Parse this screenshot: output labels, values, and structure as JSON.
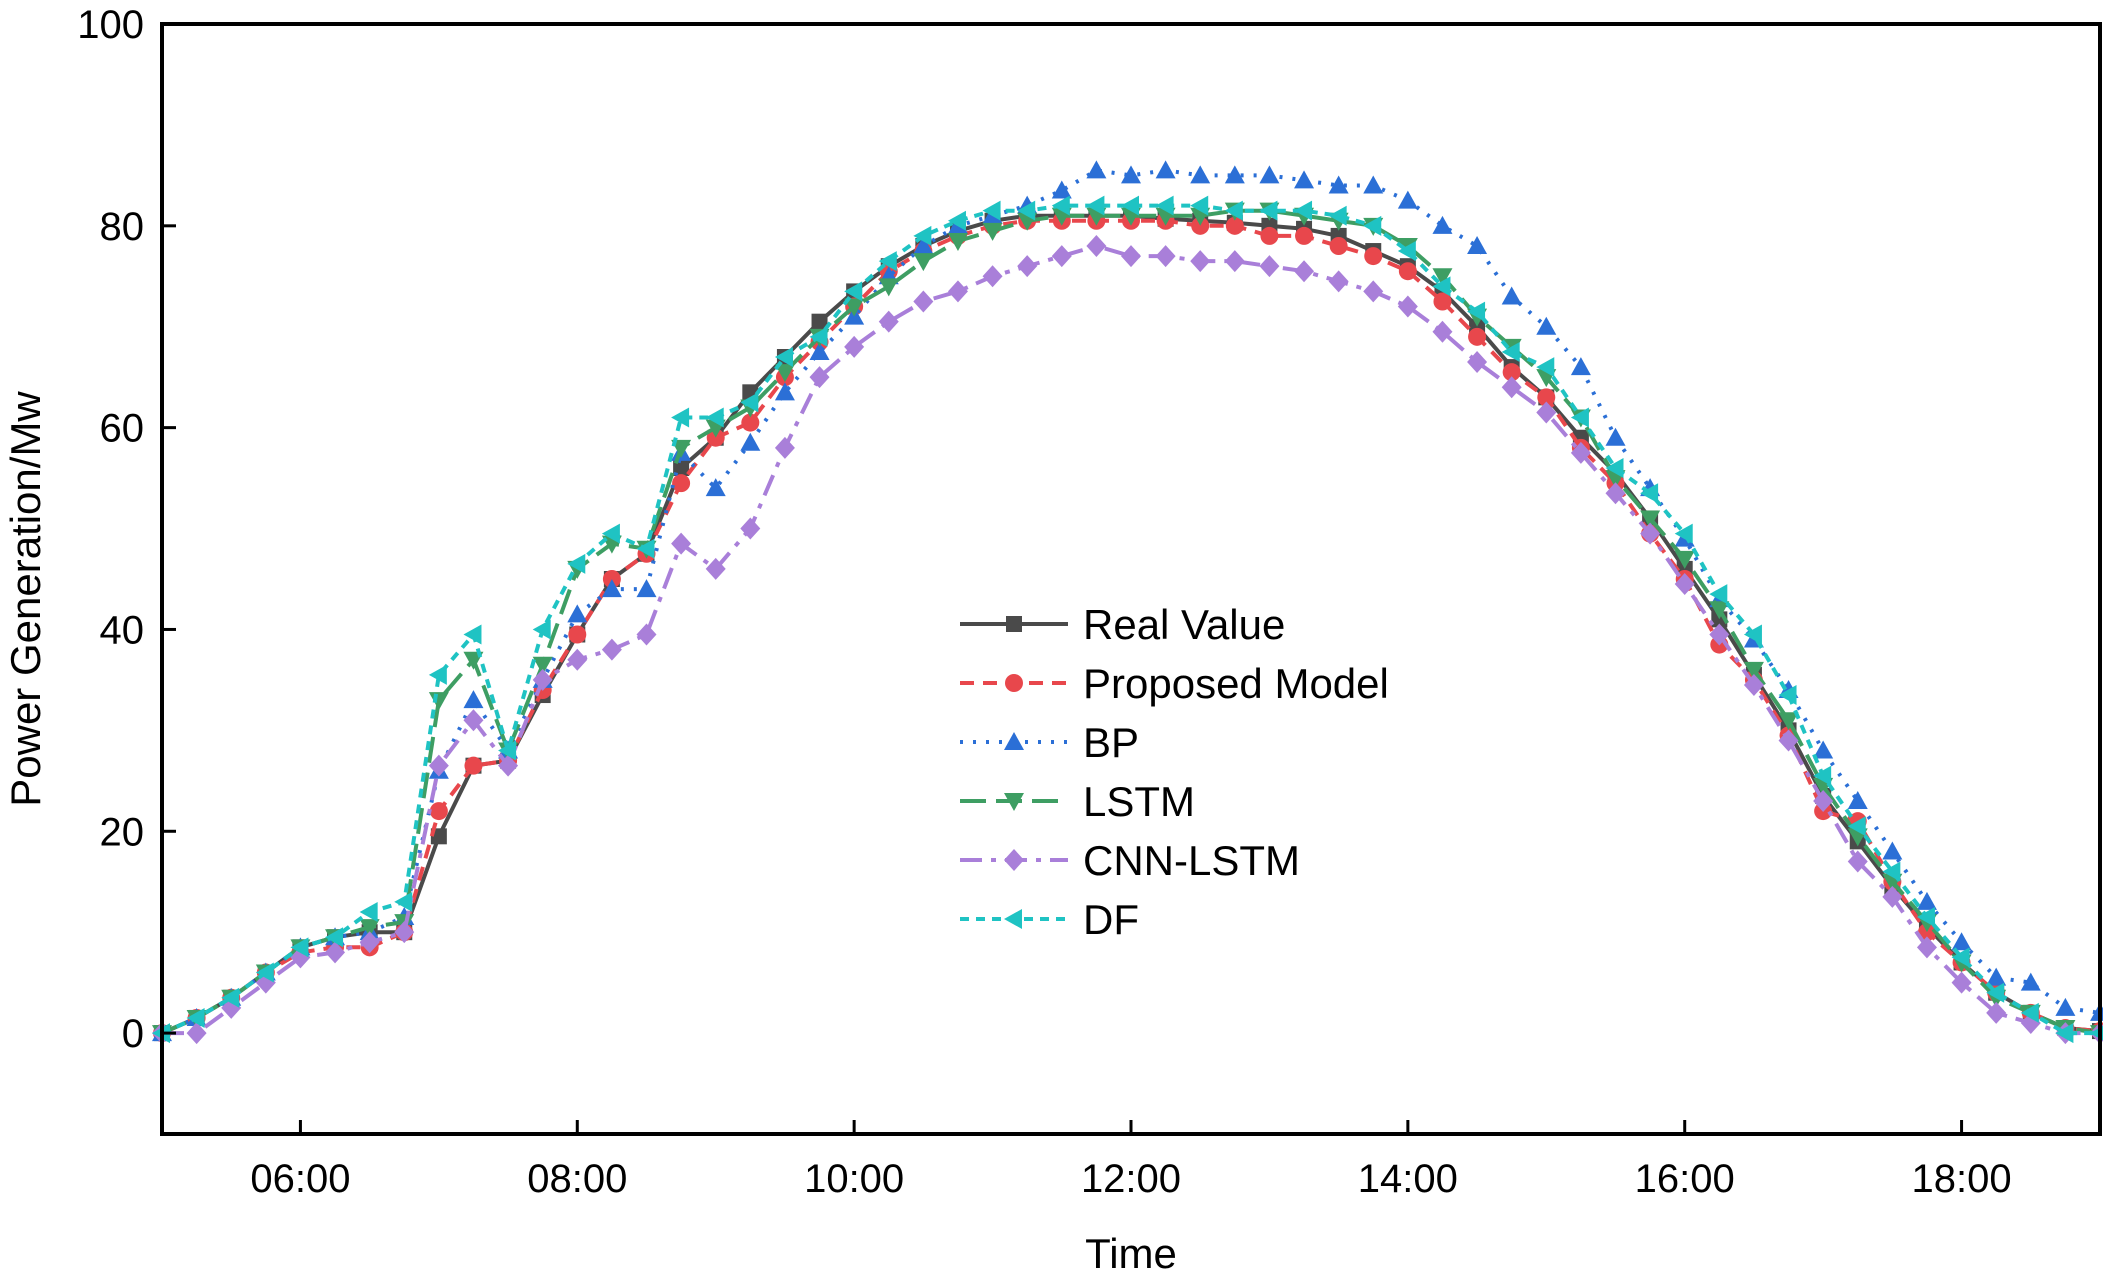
{
  "chart_data": {
    "type": "line",
    "xlabel": "Time",
    "ylabel": "Power Generation/Mw",
    "xlim": [
      5.0,
      19.0
    ],
    "ylim": [
      -10,
      100
    ],
    "xticks": [
      {
        "value": 6,
        "label": "06:00"
      },
      {
        "value": 8,
        "label": "08:00"
      },
      {
        "value": 10,
        "label": "10:00"
      },
      {
        "value": 12,
        "label": "12:00"
      },
      {
        "value": 14,
        "label": "14:00"
      },
      {
        "value": 16,
        "label": "16:00"
      },
      {
        "value": 18,
        "label": "18:00"
      }
    ],
    "yticks": [
      0,
      20,
      40,
      60,
      80,
      100
    ],
    "grid": false,
    "legend": "center",
    "x": [
      5.0,
      5.25,
      5.5,
      5.75,
      6.0,
      6.25,
      6.5,
      6.75,
      7.0,
      7.25,
      7.5,
      7.75,
      8.0,
      8.25,
      8.5,
      8.75,
      9.0,
      9.25,
      9.5,
      9.75,
      10.0,
      10.25,
      10.5,
      10.75,
      11.0,
      11.25,
      11.5,
      11.75,
      12.0,
      12.25,
      12.5,
      12.75,
      13.0,
      13.25,
      13.5,
      13.75,
      14.0,
      14.25,
      14.5,
      14.75,
      15.0,
      15.25,
      15.5,
      15.75,
      16.0,
      16.25,
      16.5,
      16.75,
      17.0,
      17.25,
      17.5,
      17.75,
      18.0,
      18.25,
      18.5,
      18.75,
      19.0
    ],
    "series": [
      {
        "name": "Real Value",
        "color": "#4a4a4a",
        "marker": "square",
        "dash": "solid",
        "values": [
          0,
          1.5,
          3.5,
          6,
          8.5,
          9.5,
          10,
          10,
          19.5,
          26.5,
          27,
          33.5,
          39.5,
          45,
          47.5,
          56,
          59,
          63.5,
          67,
          70.5,
          73.5,
          76,
          78,
          79.5,
          80.5,
          81,
          81,
          81,
          81,
          80.7,
          80.5,
          80.3,
          80,
          79.7,
          79,
          77.5,
          76,
          73.5,
          70,
          66,
          63,
          59,
          55.5,
          51,
          46,
          41,
          35.5,
          30,
          23.5,
          19,
          14.5,
          10.5,
          7,
          4,
          2,
          0.5,
          0.2
        ]
      },
      {
        "name": "Proposed Model",
        "color": "#e8474c",
        "marker": "circle",
        "dash": "14,9",
        "values": [
          0,
          1.5,
          3.5,
          6,
          8,
          8.5,
          8.5,
          10,
          22,
          26.5,
          27,
          34,
          39.5,
          45,
          47.5,
          54.5,
          59,
          60.5,
          65,
          68.5,
          72,
          75.5,
          77.5,
          79,
          80,
          80.5,
          80.5,
          80.5,
          80.5,
          80.5,
          80,
          80,
          79,
          79,
          78,
          77,
          75.5,
          72.5,
          69,
          65.5,
          63,
          58,
          54.5,
          49.5,
          45,
          38.5,
          35,
          29.5,
          22,
          21,
          15,
          10,
          7,
          4,
          2,
          0.5,
          0.2
        ]
      },
      {
        "name": "BP",
        "color": "#2b6fd6",
        "marker": "triangle-up",
        "dash": "3,10",
        "values": [
          0,
          1.5,
          3.5,
          6,
          8.5,
          9.5,
          10,
          11.5,
          26,
          33,
          28,
          35,
          41.5,
          44,
          44,
          57.5,
          54,
          58.5,
          63.5,
          67.5,
          71,
          75,
          78,
          80,
          81,
          82,
          83.5,
          85.5,
          85,
          85.5,
          85,
          85,
          85,
          84.5,
          84,
          84,
          82.5,
          80,
          78,
          73,
          70,
          66,
          59,
          54,
          49,
          43,
          39,
          34,
          28,
          23,
          18,
          13,
          9,
          5.5,
          5,
          2.5,
          2
        ]
      },
      {
        "name": "LSTM",
        "color": "#3e9e63",
        "marker": "triangle-down",
        "dash": "26,10",
        "values": [
          0,
          1.5,
          3.5,
          6,
          8.5,
          9.5,
          10.5,
          11,
          33,
          37,
          28,
          36.5,
          46,
          48.5,
          48,
          58,
          60,
          62,
          65.5,
          69,
          72,
          74,
          76.5,
          78.5,
          79.5,
          80.5,
          81,
          81,
          81,
          81,
          81,
          81.5,
          81.5,
          81,
          80.5,
          80,
          78,
          75,
          71,
          68,
          65,
          61,
          55,
          51,
          47,
          42,
          36,
          31,
          24.5,
          19.5,
          15,
          11,
          7,
          3.5,
          2,
          0.5,
          0
        ]
      },
      {
        "name": "CNN-LSTM",
        "color": "#a97fd9",
        "marker": "diamond",
        "dash": "22,9,5,9",
        "values": [
          0,
          0,
          2.5,
          5,
          7.5,
          8,
          9,
          10,
          26.5,
          31,
          26.5,
          35,
          37,
          38,
          39.5,
          48.5,
          46,
          50,
          58,
          65,
          68,
          70.5,
          72.5,
          73.5,
          75,
          76,
          77,
          78,
          77,
          77,
          76.5,
          76.5,
          76,
          75.5,
          74.5,
          73.5,
          72,
          69.5,
          66.5,
          64,
          61.5,
          57.5,
          53.5,
          49.5,
          44.5,
          39.5,
          34.5,
          29,
          23,
          17,
          13.5,
          8.5,
          5,
          2,
          1,
          0,
          0
        ]
      },
      {
        "name": "DF",
        "color": "#1fc3c3",
        "marker": "triangle-left",
        "dash": "9,7",
        "values": [
          0,
          1.5,
          3.5,
          6,
          8.5,
          9.5,
          12,
          13,
          35.5,
          39.5,
          28,
          40,
          46.5,
          49.5,
          48,
          61,
          61,
          62.5,
          67,
          69,
          73.5,
          76.5,
          79,
          80.5,
          81.5,
          81.5,
          82,
          82,
          82,
          82,
          82,
          81.5,
          81.5,
          81.5,
          81,
          80,
          77.5,
          74,
          71.5,
          67.5,
          66,
          61,
          56,
          53.5,
          49.5,
          43.5,
          39.5,
          33.5,
          25.5,
          20.5,
          16,
          11.5,
          7.5,
          4,
          2,
          0,
          0
        ]
      }
    ]
  }
}
